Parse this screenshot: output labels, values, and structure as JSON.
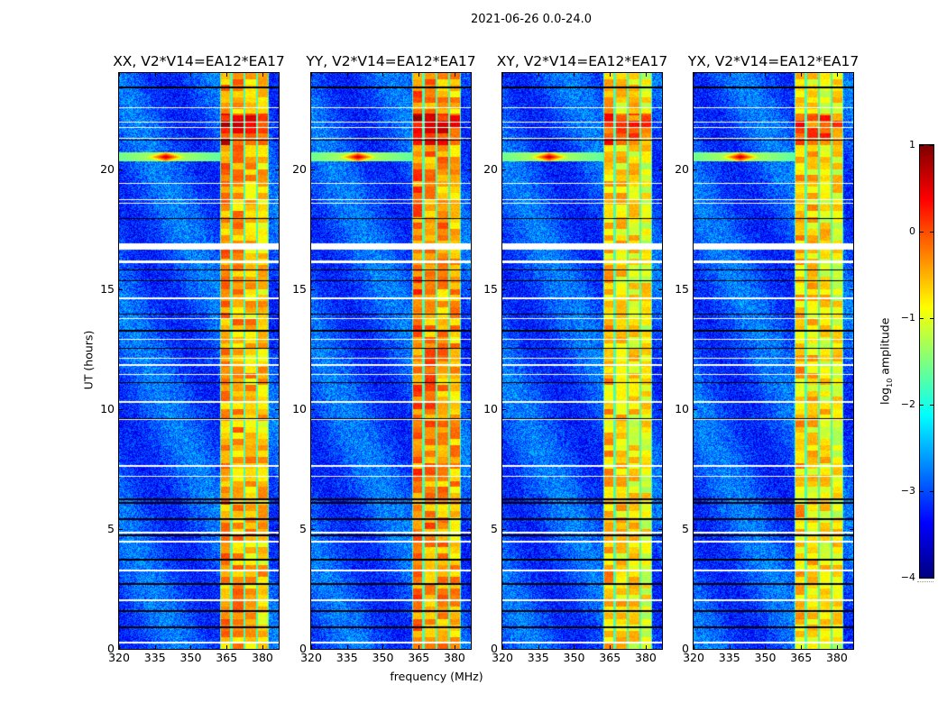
{
  "chart_data": {
    "type": "heatmap",
    "title": "2021-06-26 0.0-24.0",
    "xlabel": "frequency (MHz)",
    "ylabel": "UT (hours)",
    "xlim": [
      320,
      386.8
    ],
    "ylim": [
      0,
      24
    ],
    "xticks": [
      320,
      335,
      350,
      365,
      380
    ],
    "yticks": [
      0,
      5,
      10,
      15,
      20
    ],
    "panels": [
      {
        "title": "XX, V2*V14=EA12*EA17",
        "band_level": -0.35
      },
      {
        "title": "YY, V2*V14=EA12*EA17",
        "band_level": -0.2
      },
      {
        "title": "XY, V2*V14=EA12*EA17",
        "band_level": -0.6
      },
      {
        "title": "YX, V2*V14=EA12*EA17",
        "band_level": -0.6
      }
    ],
    "background_level": -3.0,
    "band_subchannels_mhz": [
      [
        362.3,
        367.0
      ],
      [
        367.0,
        372.5
      ],
      [
        372.5,
        377.7
      ],
      [
        377.7,
        382.6
      ]
    ],
    "rfi_spike": {
      "freq_mhz": 339.6,
      "time_h": 20.5,
      "level": 0.8
    },
    "flagged_white_times_h": [
      22.55,
      21.95,
      21.73,
      21.28,
      19.4,
      18.72,
      18.57,
      16.1,
      14.6,
      13.77,
      12.9,
      12.12,
      11.82,
      11.44,
      10.28,
      9.57,
      7.62,
      7.2,
      4.84,
      4.47,
      3.26,
      2.03,
      0.26
    ],
    "flagged_white_bands_h": [
      [
        16.62,
        16.9
      ],
      [
        16.1,
        16.2
      ]
    ],
    "black_line_times_h": [
      23.41,
      21.2,
      17.94,
      15.8,
      15.35,
      13.96,
      13.25,
      12.53,
      11.1,
      9.6,
      6.23,
      6.08,
      5.4,
      4.73,
      3.71,
      2.7,
      1.58,
      0.9
    ],
    "colorbar": {
      "label": "log10 amplitude",
      "label_main": "log",
      "label_sub": "10",
      "label_rest": " amplitude",
      "range": [
        -4,
        1
      ],
      "ticks": [
        1,
        0,
        -1,
        -2,
        -3,
        -4
      ],
      "tick_labels": [
        "1",
        "0",
        "−1",
        "−2",
        "−3",
        "−4"
      ],
      "colormap": "jet"
    }
  }
}
